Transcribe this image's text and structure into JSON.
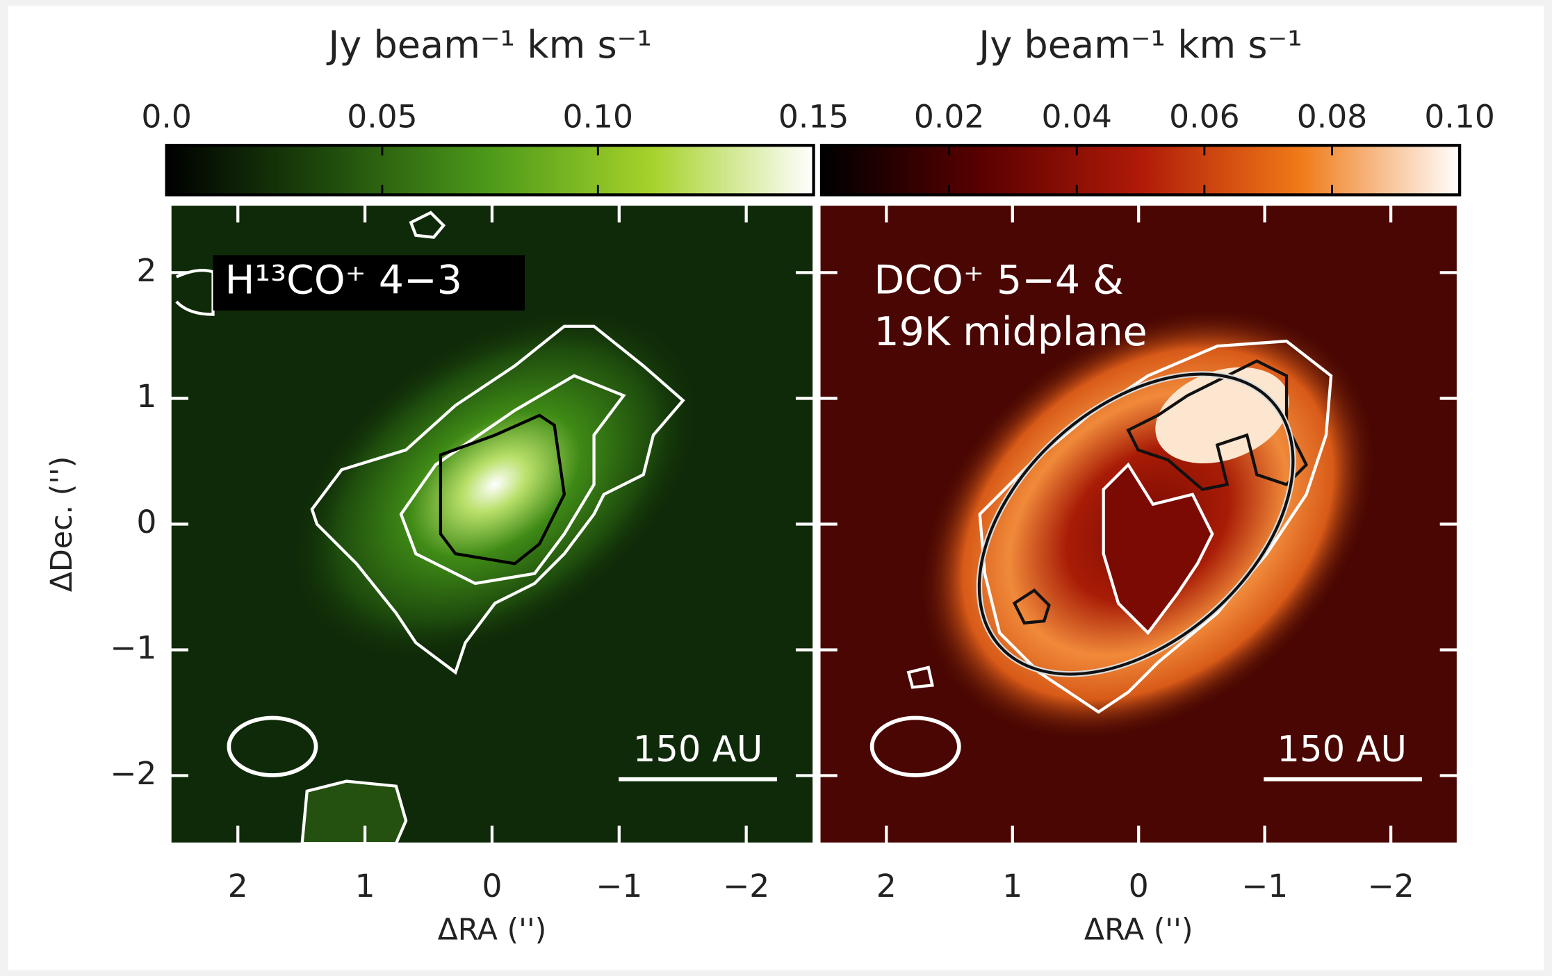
{
  "chart_data": [
    {
      "type": "image",
      "colorbar_label": "Jy beam⁻¹ km s⁻¹",
      "clim": [
        0,
        0.15
      ],
      "colorbar_ticks": [
        {
          "value": 0,
          "label": "0.0"
        },
        0.05,
        {
          "value": 0.1,
          "label": "0.10"
        },
        0.15
      ],
      "colors": [
        "#000000",
        "#1e4a0c",
        "#4d9a1a",
        "#a6d22a",
        "#ffffff"
      ],
      "annotation": [
        "H¹³CO⁺ 4−3"
      ],
      "scale_bar": "150 AU",
      "xlabel": "ΔRA ('')",
      "ylabel": "ΔDec. ('')",
      "xlim": [
        2.53,
        -2.53
      ],
      "ylim": [
        -2.54,
        2.54
      ],
      "xticks": [
        2,
        1,
        0,
        {
          "value": -1,
          "label": "−1"
        },
        {
          "value": -2,
          "label": "−2"
        }
      ],
      "yticks": [
        {
          "value": -2,
          "label": "−2"
        },
        {
          "value": -1,
          "label": "−1"
        },
        0,
        1,
        2
      ],
      "ytick_labels": true
    },
    {
      "type": "image",
      "colorbar_label": "Jy beam⁻¹ km s⁻¹",
      "clim": [
        0,
        0.1
      ],
      "colorbar_ticks": [
        0.02,
        0.04,
        0.06,
        0.08,
        {
          "value": 0.1,
          "label": "0.10"
        }
      ],
      "colors": [
        "#000000",
        "#5a0000",
        "#b01a08",
        "#f07a18",
        "#ffffff"
      ],
      "annotation": [
        "DCO⁺ 5−4 &",
        "19K midplane"
      ],
      "scale_bar": "150 AU",
      "xlabel": "ΔRA ('')",
      "xlim": [
        2.53,
        -2.53
      ],
      "ylim": [
        -2.54,
        2.54
      ],
      "xticks": [
        2,
        1,
        0,
        {
          "value": -1,
          "label": "−1"
        },
        {
          "value": -2,
          "label": "−2"
        }
      ],
      "yticks": [
        -2,
        -1,
        0,
        1,
        2
      ],
      "ytick_labels": false
    }
  ]
}
